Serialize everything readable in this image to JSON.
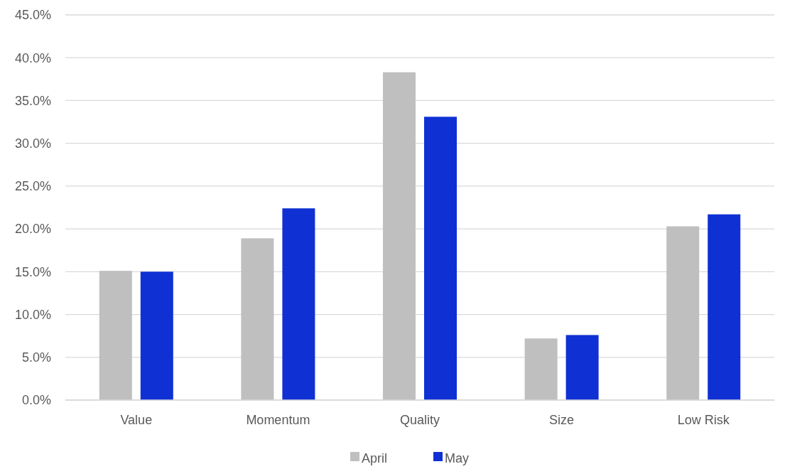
{
  "chart_data": {
    "type": "bar",
    "categories": [
      "Value",
      "Momentum",
      "Quality",
      "Size",
      "Low Risk"
    ],
    "series": [
      {
        "name": "April",
        "color": "#bfbfbf",
        "values": [
          15.1,
          18.9,
          38.3,
          7.2,
          20.3
        ]
      },
      {
        "name": "May",
        "color": "#0f31d4",
        "values": [
          15.0,
          22.4,
          33.1,
          7.6,
          21.7
        ]
      }
    ],
    "ylim": [
      0,
      45
    ],
    "yticks": [
      {
        "value": 0,
        "label": "0.0%"
      },
      {
        "value": 5,
        "label": "5.0%"
      },
      {
        "value": 10,
        "label": "10.0%"
      },
      {
        "value": 15,
        "label": "15.0%"
      },
      {
        "value": 20,
        "label": "20.0%"
      },
      {
        "value": 25,
        "label": "25.0%"
      },
      {
        "value": 30,
        "label": "30.0%"
      },
      {
        "value": 35,
        "label": "35.0%"
      },
      {
        "value": 40,
        "label": "40.0%"
      },
      {
        "value": 45,
        "label": "45.0%"
      }
    ],
    "grid": "y",
    "legend": "bottom"
  }
}
